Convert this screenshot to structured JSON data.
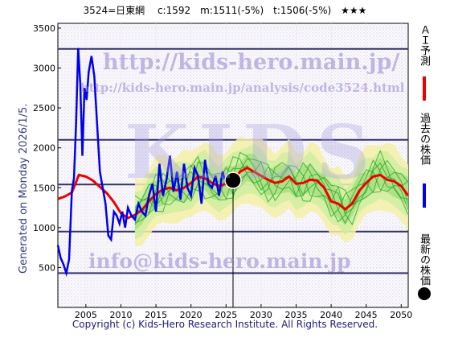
{
  "header": {
    "title": "3524=日東網　 c:1592　m:1511(-5%)　t:1506(-5%)　★★★"
  },
  "footer": {
    "copyright": "Copyright (c) Kids-Hero Research Institute. All Rights Reserved."
  },
  "side": {
    "generated": "Generated on Monday 2026/1/5."
  },
  "watermarks": {
    "site": "http://kids-hero.main.jp/",
    "analysis": "http://kids-hero.main.jp/analysis/code3524.html",
    "brand": "KIDS",
    "email": "info@kids-hero.main.jp"
  },
  "legend": {
    "ai": "ＡＩ予測",
    "past": "過去の株価",
    "latest": "最新の株価"
  },
  "colors": {
    "past": "#0000ee",
    "ai": "#ee0000",
    "band": "#22aa22",
    "hline": "#33336a",
    "marker": "#000000"
  },
  "chart_data": {
    "type": "line",
    "xlim": [
      2001,
      2051
    ],
    "ylim": [
      0,
      3560
    ],
    "xticks": [
      2005,
      2010,
      2015,
      2020,
      2025,
      2030,
      2035,
      2040,
      2045,
      2050
    ],
    "yticks": [
      500,
      1000,
      1500,
      2000,
      2500,
      3000,
      3500
    ],
    "hlines": [
      430,
      950,
      1540,
      2100,
      3240
    ],
    "current": {
      "x": 2026.0,
      "y": 1592
    },
    "series": [
      {
        "name": "過去の株価",
        "x": [
          2001.0,
          2001.4,
          2001.8,
          2002.2,
          2002.6,
          2003.0,
          2003.3,
          2003.6,
          2003.9,
          2004.2,
          2004.5,
          2004.8,
          2005.1,
          2005.4,
          2005.8,
          2006.2,
          2006.6,
          2007.0,
          2007.4,
          2007.8,
          2008.2,
          2008.6,
          2009.0,
          2009.4,
          2009.8,
          2010.2,
          2010.6,
          2011.0,
          2011.5,
          2012.0,
          2012.5,
          2013.0,
          2013.5,
          2014.0,
          2014.5,
          2015.0,
          2015.5,
          2016.0,
          2016.5,
          2017.0,
          2017.5,
          2018.0,
          2018.5,
          2019.0,
          2019.5,
          2020.0,
          2020.5,
          2021.0,
          2021.5,
          2022.0,
          2022.5,
          2023.0,
          2023.5,
          2024.0,
          2024.5,
          2025.0,
          2025.5,
          2026.0
        ],
        "y": [
          780,
          620,
          540,
          430,
          600,
          1460,
          1620,
          2300,
          3250,
          2800,
          1900,
          2750,
          2600,
          2950,
          3150,
          2900,
          2300,
          1700,
          1500,
          1300,
          900,
          850,
          1200,
          1150,
          1050,
          1200,
          1000,
          1250,
          1150,
          1100,
          1300,
          1200,
          1150,
          1400,
          1550,
          1200,
          1800,
          1400,
          1600,
          1900,
          1450,
          1700,
          1350,
          1800,
          1500,
          1400,
          1750,
          1650,
          1300,
          1850,
          1550,
          1500,
          1650,
          1400,
          1700,
          1550,
          1600,
          1592
        ]
      },
      {
        "name": "ＡＩ予測",
        "x": [
          2001,
          2002,
          2003,
          2004,
          2005,
          2006,
          2007,
          2008,
          2009,
          2010,
          2011,
          2012,
          2013,
          2014,
          2015,
          2016,
          2017,
          2018,
          2019,
          2020,
          2021,
          2022,
          2023,
          2024,
          2025,
          2026,
          2027,
          2028,
          2029,
          2030,
          2031,
          2032,
          2033,
          2034,
          2035,
          2036,
          2037,
          2038,
          2039,
          2040,
          2041,
          2042,
          2043,
          2044,
          2045,
          2046,
          2047,
          2048,
          2049,
          2050,
          2051
        ],
        "y": [
          1360,
          1390,
          1440,
          1660,
          1640,
          1590,
          1510,
          1430,
          1320,
          1180,
          1120,
          1160,
          1220,
          1330,
          1420,
          1480,
          1500,
          1470,
          1500,
          1560,
          1640,
          1620,
          1560,
          1520,
          1550,
          1590,
          1700,
          1750,
          1700,
          1650,
          1600,
          1560,
          1580,
          1640,
          1550,
          1560,
          1600,
          1590,
          1500,
          1330,
          1300,
          1230,
          1300,
          1460,
          1560,
          1640,
          1660,
          1600,
          1580,
          1520,
          1400
        ]
      }
    ]
  }
}
